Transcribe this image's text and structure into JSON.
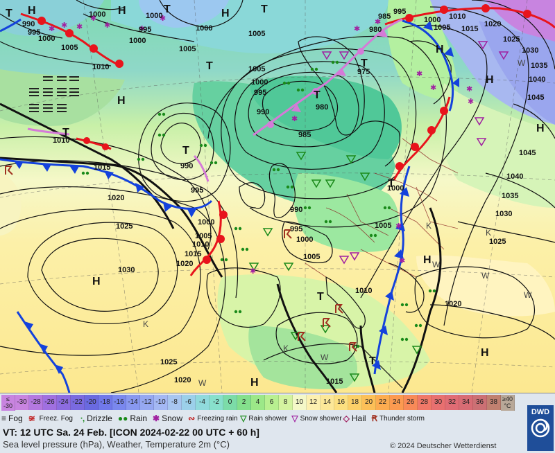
{
  "colors": {
    "warm_front": "#e8141c",
    "cold_front": "#1442dc",
    "occluded_front": "#d57ad8",
    "isobar": "#111111",
    "coast": "#101010",
    "border": "#8a2020"
  },
  "pressure_labels": [
    "1000",
    "1000",
    "995",
    "1000",
    "990",
    "995",
    "1000",
    "1005",
    "1000",
    "1005",
    "1010",
    "1005",
    "1005",
    "1000",
    "995",
    "990",
    "980",
    "985",
    "975",
    "980",
    "985",
    "995",
    "1000",
    "1005",
    "1010",
    "1015",
    "1020",
    "1025",
    "1030",
    "1035",
    "1040",
    "1045",
    "1010",
    "1015",
    "990",
    "995",
    "1000",
    "1005",
    "1010",
    "1015",
    "1020",
    "1020",
    "1025",
    "1030",
    "990",
    "995",
    "1000",
    "1005",
    "1010",
    "1005",
    "1000",
    "1045",
    "1040",
    "1035",
    "1030",
    "1025",
    "1020",
    "1020",
    "1025",
    "1015"
  ],
  "centers": [
    "T",
    "H",
    "T",
    "H",
    "T",
    "H",
    "T",
    "H",
    "T",
    "H",
    "T",
    "H",
    "T",
    "T",
    "H",
    "T",
    "H",
    "H",
    "T",
    "H",
    "T",
    "H"
  ],
  "weather_marks": [
    "K",
    "K",
    "K",
    "W",
    "W",
    "W",
    "W",
    "W",
    "W",
    "K"
  ],
  "temp_scale": [
    {
      "label": "≤ -30",
      "color": "#c884e0"
    },
    {
      "label": "-30",
      "color": "#c884e0"
    },
    {
      "label": "-28",
      "color": "#b478e0"
    },
    {
      "label": "-26",
      "color": "#a070e0"
    },
    {
      "label": "-24",
      "color": "#8c6ce0"
    },
    {
      "label": "-22",
      "color": "#7a6ae0"
    },
    {
      "label": "-20",
      "color": "#6a6ae0"
    },
    {
      "label": "-18",
      "color": "#7078ea"
    },
    {
      "label": "-16",
      "color": "#7a88ee"
    },
    {
      "label": "-14",
      "color": "#8898f0"
    },
    {
      "label": "-12",
      "color": "#96a8f2"
    },
    {
      "label": "-10",
      "color": "#a4b8f4"
    },
    {
      "label": "-8",
      "color": "#a8c6f0"
    },
    {
      "label": "-6",
      "color": "#9cd0ea"
    },
    {
      "label": "-4",
      "color": "#90dadc"
    },
    {
      "label": "-2",
      "color": "#88e0cc"
    },
    {
      "label": "0",
      "color": "#7cdca8"
    },
    {
      "label": "2",
      "color": "#84e08c"
    },
    {
      "label": "4",
      "color": "#9ce888"
    },
    {
      "label": "6",
      "color": "#b8f090"
    },
    {
      "label": "8",
      "color": "#d4f4a0"
    },
    {
      "label": "10",
      "color": "#f4f8c8"
    },
    {
      "label": "12",
      "color": "#fcf0b0"
    },
    {
      "label": "14",
      "color": "#fce898"
    },
    {
      "label": "16",
      "color": "#fce080"
    },
    {
      "label": "18",
      "color": "#fcd068"
    },
    {
      "label": "20",
      "color": "#fcc058"
    },
    {
      "label": "22",
      "color": "#fcac50"
    },
    {
      "label": "24",
      "color": "#fc9a50"
    },
    {
      "label": "26",
      "color": "#f88a58"
    },
    {
      "label": "28",
      "color": "#f07868"
    },
    {
      "label": "30",
      "color": "#e87070"
    },
    {
      "label": "32",
      "color": "#e06c74"
    },
    {
      "label": "34",
      "color": "#d86c74"
    },
    {
      "label": "36",
      "color": "#cc7074"
    },
    {
      "label": "38",
      "color": "#c08070"
    },
    {
      "label": "≥40 °C",
      "color": "#b8a898"
    }
  ],
  "weather_legend": [
    {
      "label": "Fog",
      "symbol": "≡",
      "color": "#333333"
    },
    {
      "label": "Freez. Fog",
      "symbol": "≆",
      "color": "#c02020"
    },
    {
      "label": "Drizzle",
      "symbol": "ᐧ,",
      "color": "#1a8a1a"
    },
    {
      "label": "Rain",
      "symbol": "●●",
      "color": "#1a8a1a"
    },
    {
      "label": "Snow",
      "symbol": "✱",
      "color": "#a020a0"
    },
    {
      "label": "Freezing rain",
      "symbol": "∾",
      "color": "#c02020"
    },
    {
      "label": "Rain shower",
      "symbol": "▽",
      "color": "#1a8a1a"
    },
    {
      "label": "Snow shower",
      "symbol": "▽",
      "color": "#a020a0"
    },
    {
      "label": "Hail",
      "symbol": "◇",
      "color": "#a02060"
    },
    {
      "label": "Thunder storm",
      "symbol": "Ꞧ",
      "color": "#a03020"
    }
  ],
  "info": {
    "valid_time": "VT: 12 UTC Sa.  24 Feb. [ICON 2024-02-22  00 UTC + 60 h]",
    "parameters": "Sea level pressure (hPa), Weather, Temperature 2m (°C)",
    "copyright": "© 2024 Deutscher Wetterdienst",
    "logo": "DWD"
  }
}
